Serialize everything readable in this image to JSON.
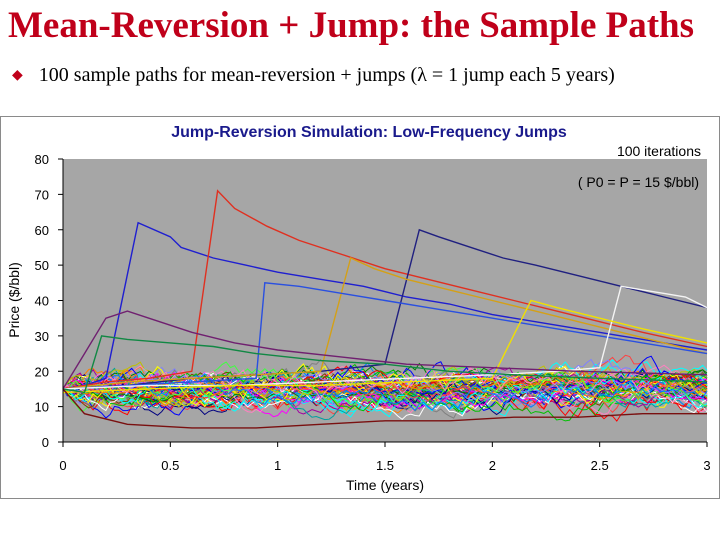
{
  "slide": {
    "title": "Mean-Reversion + Jump: the Sample Paths",
    "bullet_text": "100 sample paths for mean-reversion + jumps (λ = 1 jump each 5 years)"
  },
  "chart_data": {
    "type": "line",
    "title": "Jump-Reversion Simulation: Low-Frequency Jumps",
    "xlabel": "Time (years)",
    "ylabel": "Price ($/bbl)",
    "xlim": [
      0,
      3
    ],
    "ylim": [
      0,
      80
    ],
    "x_ticks": [
      "0",
      "0.5",
      "1",
      "1.5",
      "2",
      "2.5",
      "3"
    ],
    "y_ticks": [
      "0",
      "10",
      "20",
      "30",
      "40",
      "50",
      "60",
      "70",
      "80"
    ],
    "annotation_iterations": "100 iterations",
    "annotation_params": "( P0 = P = 15 $/bbl)",
    "plot_background": "#a6a6a6",
    "title_color": "#1a1a8c",
    "series_note": "100 simulated paths; highlighted paths listed below, remaining paths clustered around 15 $/bbl",
    "series": [
      {
        "name": "path-blue-early-jump",
        "color": "#1f1fd0",
        "x": [
          0,
          0.1,
          0.2,
          0.35,
          0.5,
          0.55,
          0.7,
          0.85,
          1.0,
          1.2,
          1.4,
          1.6,
          1.8,
          2.0,
          2.2,
          2.4,
          2.6,
          2.8,
          3.0
        ],
        "y": [
          15,
          16,
          18,
          62,
          58,
          55,
          52,
          50,
          48,
          46,
          44,
          41,
          39,
          36,
          34,
          32,
          30,
          28,
          26
        ]
      },
      {
        "name": "path-red-jump-0.73",
        "color": "#e03020",
        "x": [
          0,
          0.2,
          0.4,
          0.6,
          0.72,
          0.8,
          0.95,
          1.1,
          1.3,
          1.5,
          1.7,
          1.9,
          2.1,
          2.3,
          2.5,
          2.7,
          3.0
        ],
        "y": [
          15,
          17,
          18,
          20,
          71,
          66,
          61,
          57,
          53,
          49,
          46,
          43,
          40,
          37,
          34,
          31,
          27
        ]
      },
      {
        "name": "path-navy-jump-1.67",
        "color": "#202080",
        "x": [
          0,
          0.3,
          0.6,
          0.9,
          1.2,
          1.5,
          1.66,
          1.75,
          1.9,
          2.05,
          2.2,
          2.4,
          2.6,
          2.8,
          3.0
        ],
        "y": [
          15,
          16,
          18,
          19,
          20,
          22,
          60,
          58,
          55,
          52,
          50,
          47,
          44,
          41,
          38
        ]
      },
      {
        "name": "path-gold-jump-1.35",
        "color": "#d4a017",
        "x": [
          0,
          0.3,
          0.6,
          0.9,
          1.2,
          1.34,
          1.45,
          1.6,
          1.8,
          2.0,
          2.2,
          2.4,
          2.6,
          2.8,
          3.0
        ],
        "y": [
          15,
          17,
          18,
          19,
          20,
          52,
          49,
          46,
          43,
          40,
          37,
          34,
          31,
          28,
          25
        ]
      },
      {
        "name": "path-blue-jump-0.95",
        "color": "#2a50e0",
        "x": [
          0,
          0.3,
          0.6,
          0.9,
          0.94,
          1.1,
          1.3,
          1.5,
          1.7,
          1.9,
          2.1,
          2.3,
          2.5,
          2.7,
          3.0
        ],
        "y": [
          15,
          16,
          17,
          18,
          45,
          44,
          42,
          40,
          38,
          36,
          34,
          32,
          30,
          28,
          25
        ]
      },
      {
        "name": "path-white-late-jump",
        "color": "#f4f4f4",
        "x": [
          0,
          0.4,
          0.8,
          1.2,
          1.6,
          2.0,
          2.3,
          2.5,
          2.6,
          2.7,
          2.8,
          2.9,
          3.0
        ],
        "y": [
          15,
          16,
          16,
          17,
          18,
          19,
          20,
          21,
          44,
          43,
          42,
          41,
          38
        ]
      },
      {
        "name": "path-yellow-jump-2.2",
        "color": "#f0e000",
        "x": [
          0,
          0.4,
          0.8,
          1.2,
          1.6,
          2.0,
          2.18,
          2.3,
          2.5,
          2.7,
          3.0
        ],
        "y": [
          14,
          15,
          16,
          16,
          17,
          18,
          40,
          38,
          35,
          32,
          28
        ]
      },
      {
        "name": "path-purple-early",
        "color": "#702070",
        "x": [
          0,
          0.1,
          0.2,
          0.3,
          0.4,
          0.6,
          0.8,
          1.0,
          1.3,
          1.6,
          2.0,
          2.4,
          3.0
        ],
        "y": [
          15,
          25,
          35,
          37,
          35,
          31,
          28,
          26,
          24,
          22,
          21,
          20,
          19
        ]
      },
      {
        "name": "path-green-jump-0.2",
        "color": "#118844",
        "x": [
          0,
          0.1,
          0.18,
          0.3,
          0.5,
          0.7,
          0.9,
          1.2,
          1.5,
          1.8,
          2.1,
          2.5,
          3.0
        ],
        "y": [
          15,
          14,
          30,
          29,
          28,
          27,
          25,
          23,
          22,
          20,
          19,
          18,
          17
        ]
      },
      {
        "name": "path-darkred-low",
        "color": "#7a1010",
        "x": [
          0,
          0.1,
          0.3,
          0.6,
          0.9,
          1.2,
          1.5,
          1.8,
          2.1,
          2.4,
          2.7,
          3.0
        ],
        "y": [
          15,
          8,
          5,
          4,
          4,
          5,
          6,
          6,
          7,
          7,
          8,
          8
        ]
      }
    ]
  }
}
